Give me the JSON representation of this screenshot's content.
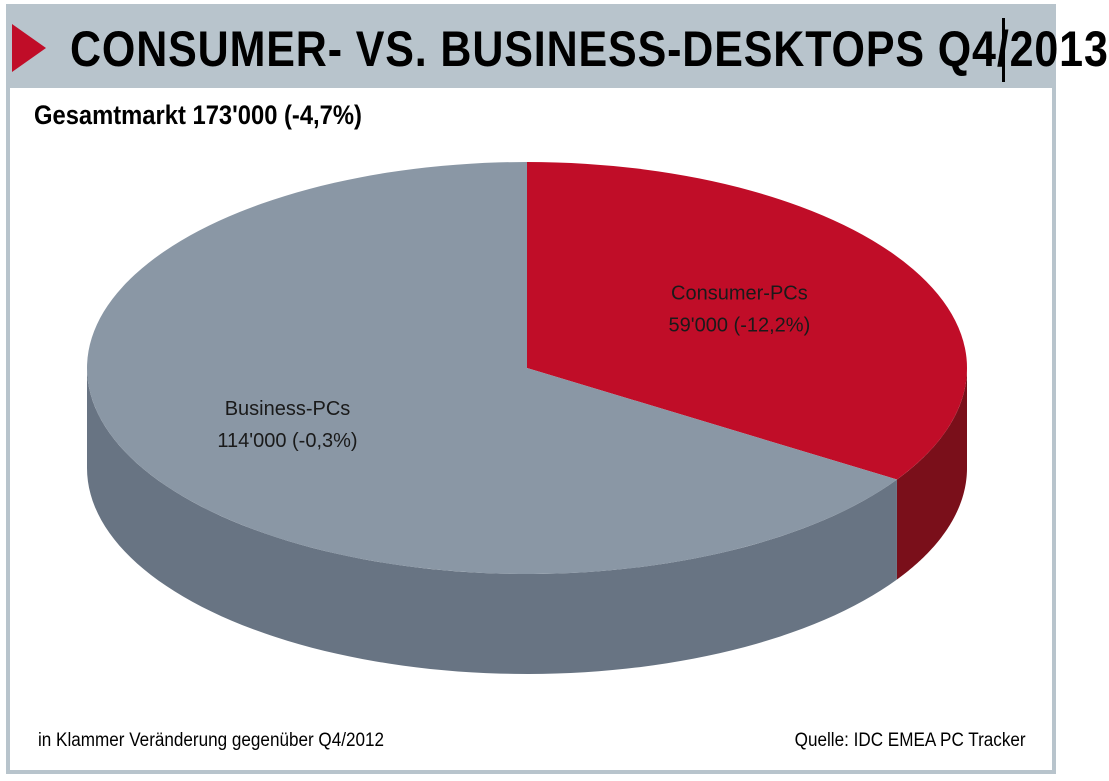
{
  "header": {
    "title": "CONSUMER- VS. BUSINESS-DESKTOPS Q4/2013",
    "subtitle": "Gesamtmarkt 173'000 (-4,7%)"
  },
  "footer": {
    "note": "in Klammer Veränderung gegenüber Q4/2012",
    "source": "Quelle: IDC EMEA PC Tracker"
  },
  "colors": {
    "accent": "#c00d28",
    "frame": "#b8c4cc",
    "consumer_top": "#c00d28",
    "consumer_side": "#7a0f1a",
    "business_top": "#8a97a5",
    "business_side": "#687483"
  },
  "chart_data": {
    "type": "pie",
    "title": "CONSUMER- VS. BUSINESS-DESKTOPS Q4/2013",
    "subtitle": "Gesamtmarkt 173'000 (-4,7%)",
    "total": 173000,
    "total_change": "-4,7%",
    "three_d": true,
    "slices": [
      {
        "label": "Consumer-PCs",
        "value": 59000,
        "value_text": "59'000 (-12,2%)",
        "change_pct": -12.2,
        "color": "#c00d28",
        "side_color": "#7a0f1a"
      },
      {
        "label": "Business-PCs",
        "value": 114000,
        "value_text": "114'000 (-0,3%)",
        "change_pct": -0.3,
        "color": "#8a97a5",
        "side_color": "#687483"
      }
    ]
  }
}
